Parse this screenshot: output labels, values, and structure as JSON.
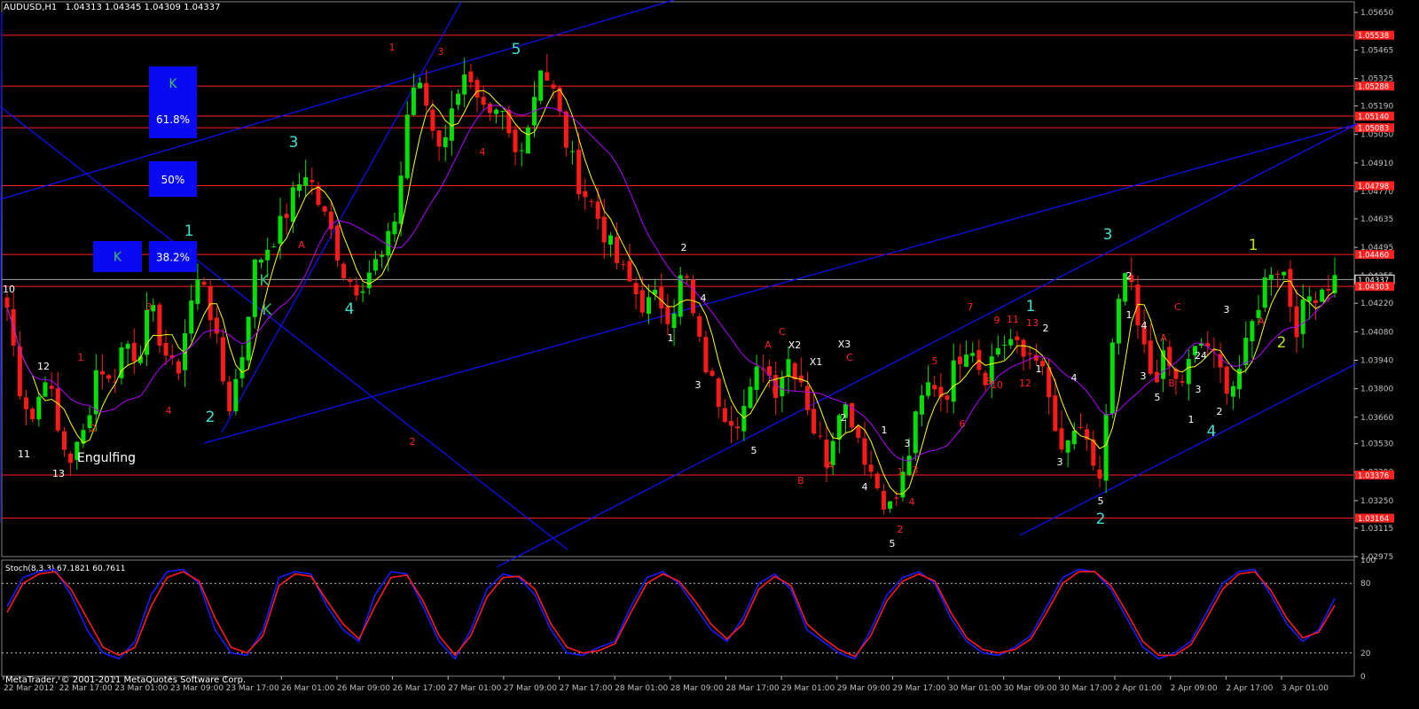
{
  "header": {
    "symbol": "AUDUSD,H1",
    "ohlc": "1.04313 1.04345 1.04309 1.04337"
  },
  "footer": {
    "copyright": "MetaTrader, © 2001-2011 MetaQuotes Software Corp."
  },
  "colors": {
    "background": "#000000",
    "bull": "#00e000",
    "bear": "#ff1a1a",
    "level": "#ff2020",
    "channel": "#1010ff",
    "ma_fast": "#ffff00",
    "ma_slow": "#b000ff",
    "stoch_main": "#1a1aff",
    "stoch_signal": "#ff1a1a",
    "fib_box": "#0a0af0",
    "axis_text": "#c0c0c0"
  },
  "chart_data": [
    {
      "type": "candlestick",
      "title": "AUDUSD,H1",
      "ylim": [
        1.02975,
        1.0565
      ],
      "y_ticks": [
        "1.05650",
        "1.05465",
        "1.05325",
        "1.05190",
        "1.05050",
        "1.04910",
        "1.04770",
        "1.04635",
        "1.04495",
        "1.04355",
        "1.04220",
        "1.04080",
        "1.03940",
        "1.03800",
        "1.03660",
        "1.03530",
        "1.03390",
        "1.03250",
        "1.03115",
        "1.02975"
      ],
      "x_ticks": [
        "22 Mar 2012",
        "22 Mar 17:00",
        "23 Mar 01:00",
        "23 Mar 09:00",
        "23 Mar 17:00",
        "26 Mar 01:00",
        "26 Mar 09:00",
        "26 Mar 17:00",
        "27 Mar 01:00",
        "27 Mar 09:00",
        "27 Mar 17:00",
        "28 Mar 01:00",
        "28 Mar 09:00",
        "28 Mar 17:00",
        "29 Mar 01:00",
        "29 Mar 09:00",
        "29 Mar 17:00",
        "30 Mar 01:00",
        "30 Mar 09:00",
        "30 Mar 17:00",
        "2 Apr 01:00",
        "2 Apr 09:00",
        "2 Apr 17:00",
        "3 Apr 01:00"
      ],
      "close_path": [
        1.042,
        1.038,
        1.0365,
        1.039,
        1.0355,
        1.0345,
        1.036,
        1.0395,
        1.038,
        1.0405,
        1.0395,
        1.042,
        1.04,
        1.0385,
        1.042,
        1.0438,
        1.0405,
        1.037,
        1.0395,
        1.044,
        1.045,
        1.046,
        1.0475,
        1.0488,
        1.047,
        1.0455,
        1.0435,
        1.043,
        1.044,
        1.0445,
        1.047,
        1.053,
        1.0525,
        1.05,
        1.051,
        1.054,
        1.052,
        1.051,
        1.0515,
        1.0495,
        1.051,
        1.054,
        1.0525,
        1.05,
        1.048,
        1.047,
        1.0455,
        1.044,
        1.043,
        1.042,
        1.0425,
        1.0415,
        1.044,
        1.0405,
        1.0385,
        1.037,
        1.0365,
        1.0375,
        1.0395,
        1.038,
        1.0395,
        1.0385,
        1.036,
        1.0345,
        1.0375,
        1.0365,
        1.0345,
        1.033,
        1.032,
        1.034,
        1.037,
        1.0385,
        1.0375,
        1.0395,
        1.0405,
        1.0385,
        1.04,
        1.0405,
        1.0395,
        1.04,
        1.0375,
        1.0345,
        1.036,
        1.035,
        1.0335,
        1.0405,
        1.044,
        1.0405,
        1.0385,
        1.0395,
        1.038,
        1.0395,
        1.0405,
        1.039,
        1.038,
        1.0395,
        1.042,
        1.044,
        1.044,
        1.041,
        1.0425,
        1.043,
        1.0434
      ],
      "price_levels": [
        "1.05538",
        "1.05288",
        "1.05140",
        "1.05083",
        "1.04798",
        "1.04460",
        "1.04337",
        "1.04303",
        "1.03376",
        "1.03164"
      ],
      "current_price": "1.04337"
    },
    {
      "type": "line",
      "title": "Stoch(8,3,3) 67.1821 60.7611",
      "ylim": [
        0,
        100
      ],
      "y_ticks": [
        "100",
        "80",
        "20",
        "0"
      ],
      "levels": [
        80,
        20
      ],
      "series": [
        {
          "values": [
            60,
            85,
            90,
            92,
            70,
            40,
            20,
            15,
            30,
            70,
            90,
            92,
            80,
            40,
            20,
            18,
            40,
            85,
            90,
            88,
            60,
            40,
            30,
            70,
            90,
            88,
            60,
            30,
            15,
            40,
            75,
            88,
            85,
            70,
            40,
            20,
            18,
            25,
            30,
            60,
            85,
            90,
            80,
            60,
            40,
            30,
            50,
            80,
            88,
            75,
            40,
            30,
            20,
            15,
            40,
            70,
            85,
            90,
            80,
            50,
            30,
            20,
            18,
            25,
            35,
            60,
            85,
            92,
            90,
            75,
            50,
            25,
            15,
            20,
            30,
            55,
            80,
            90,
            92,
            70,
            45,
            30,
            40,
            67
          ]
        },
        {
          "values": [
            55,
            80,
            88,
            90,
            75,
            50,
            25,
            18,
            25,
            60,
            85,
            90,
            82,
            50,
            25,
            20,
            35,
            78,
            88,
            86,
            65,
            45,
            32,
            60,
            85,
            87,
            65,
            35,
            18,
            35,
            68,
            85,
            86,
            75,
            45,
            25,
            20,
            22,
            28,
            55,
            80,
            88,
            82,
            65,
            45,
            32,
            45,
            75,
            86,
            78,
            45,
            33,
            23,
            17,
            35,
            65,
            82,
            88,
            82,
            55,
            33,
            23,
            20,
            23,
            32,
            55,
            80,
            90,
            90,
            78,
            55,
            30,
            18,
            18,
            27,
            50,
            75,
            88,
            90,
            74,
            50,
            33,
            38,
            61
          ]
        }
      ]
    }
  ],
  "annotations": [
    {
      "t": "1",
      "c": "#ff2020"
    },
    {
      "t": "3",
      "c": "#ff2020"
    },
    {
      "t": "5",
      "c": "#40e0d0"
    },
    {
      "t": "2",
      "c": "#ff2020"
    },
    {
      "t": "4",
      "c": "#ff2020"
    },
    {
      "t": "3",
      "c": "#40e0d0"
    },
    {
      "t": "1",
      "c": "#40e0d0"
    },
    {
      "t": "2",
      "c": "#40e0d0"
    },
    {
      "t": "4",
      "c": "#40e0d0"
    },
    {
      "t": "A",
      "c": "#ff2020"
    },
    {
      "t": "K",
      "c": "#40c070"
    },
    {
      "t": "K",
      "c": "#40c070"
    },
    {
      "t": "12",
      "c": "#ffffff"
    },
    {
      "t": "11",
      "c": "#ffffff"
    },
    {
      "t": "13",
      "c": "#ffffff"
    },
    {
      "t": "10",
      "c": "#ffffff"
    },
    {
      "t": "1",
      "c": "#ff2020"
    },
    {
      "t": "3",
      "c": "#ff2020"
    },
    {
      "t": "4",
      "c": "#ff2020"
    },
    {
      "t": "2",
      "c": "#ff2020"
    },
    {
      "t": "Engulfing",
      "c": "#ffffff"
    },
    {
      "t": "2",
      "c": "#ffffff"
    },
    {
      "t": "4",
      "c": "#ffffff"
    },
    {
      "t": "1",
      "c": "#ffffff"
    },
    {
      "t": "3",
      "c": "#ffffff"
    },
    {
      "t": "5",
      "c": "#ffffff"
    },
    {
      "t": "A",
      "c": "#ff2020"
    },
    {
      "t": "C",
      "c": "#ff2020"
    },
    {
      "t": "X2",
      "c": "#ffffff"
    },
    {
      "t": "B",
      "c": "#ff2020"
    },
    {
      "t": "X1",
      "c": "#ffffff"
    },
    {
      "t": "A",
      "c": "#ff2020"
    },
    {
      "t": "B",
      "c": "#ff2020"
    },
    {
      "t": "X3",
      "c": "#ffffff"
    },
    {
      "t": "C",
      "c": "#ff2020"
    },
    {
      "t": "2",
      "c": "#ffffff"
    },
    {
      "t": "1",
      "c": "#ffffff"
    },
    {
      "t": "4",
      "c": "#ffffff"
    },
    {
      "t": "3",
      "c": "#ffffff"
    },
    {
      "t": "3",
      "c": "#ff2020"
    },
    {
      "t": "1",
      "c": "#ff2020"
    },
    {
      "t": "4",
      "c": "#ff2020"
    },
    {
      "t": "2",
      "c": "#ff2020"
    },
    {
      "t": "5",
      "c": "#ffffff"
    },
    {
      "t": "5",
      "c": "#ff2020"
    },
    {
      "t": "6",
      "c": "#ff2020"
    },
    {
      "t": "7",
      "c": "#ff2020"
    },
    {
      "t": "9",
      "c": "#ff2020"
    },
    {
      "t": "8",
      "c": "#ff2020"
    },
    {
      "t": "10",
      "c": "#ff2020"
    },
    {
      "t": "11",
      "c": "#ff2020"
    },
    {
      "t": "13",
      "c": "#ff2020"
    },
    {
      "t": "12",
      "c": "#ff2020"
    },
    {
      "t": "1",
      "c": "#40e0d0"
    },
    {
      "t": "2",
      "c": "#ffffff"
    },
    {
      "t": "1",
      "c": "#ffffff"
    },
    {
      "t": "4",
      "c": "#ffffff"
    },
    {
      "t": "3",
      "c": "#ffffff"
    },
    {
      "t": "5",
      "c": "#ffffff"
    },
    {
      "t": "2",
      "c": "#40e0d0"
    },
    {
      "t": "3",
      "c": "#40e0d0"
    },
    {
      "t": "2",
      "c": "#ffffff"
    },
    {
      "t": "1",
      "c": "#ffffff"
    },
    {
      "t": "4",
      "c": "#ffffff"
    },
    {
      "t": "3",
      "c": "#ffffff"
    },
    {
      "t": "5",
      "c": "#ffffff"
    },
    {
      "t": "C",
      "c": "#ff2020"
    },
    {
      "t": "A",
      "c": "#ff2020"
    },
    {
      "t": "B",
      "c": "#ff2020"
    },
    {
      "t": "24",
      "c": "#ffffff"
    },
    {
      "t": "3",
      "c": "#ffffff"
    },
    {
      "t": "1",
      "c": "#ffffff"
    },
    {
      "t": "2",
      "c": "#ffffff"
    },
    {
      "t": "4",
      "c": "#40e0d0"
    },
    {
      "t": "3",
      "c": "#ffffff"
    },
    {
      "t": "1",
      "c": "#c0e020"
    },
    {
      "t": "A",
      "c": "#ff2020"
    },
    {
      "t": "2",
      "c": "#c0e020"
    }
  ],
  "fib_boxes": [
    {
      "label": "K",
      "c": "#40c070"
    },
    {
      "label": "61.8%",
      "c": "#ffffff"
    },
    {
      "label": "50%",
      "c": "#ffffff"
    },
    {
      "label": "K",
      "c": "#40c070"
    },
    {
      "label": "38.2%",
      "c": "#ffffff"
    }
  ]
}
